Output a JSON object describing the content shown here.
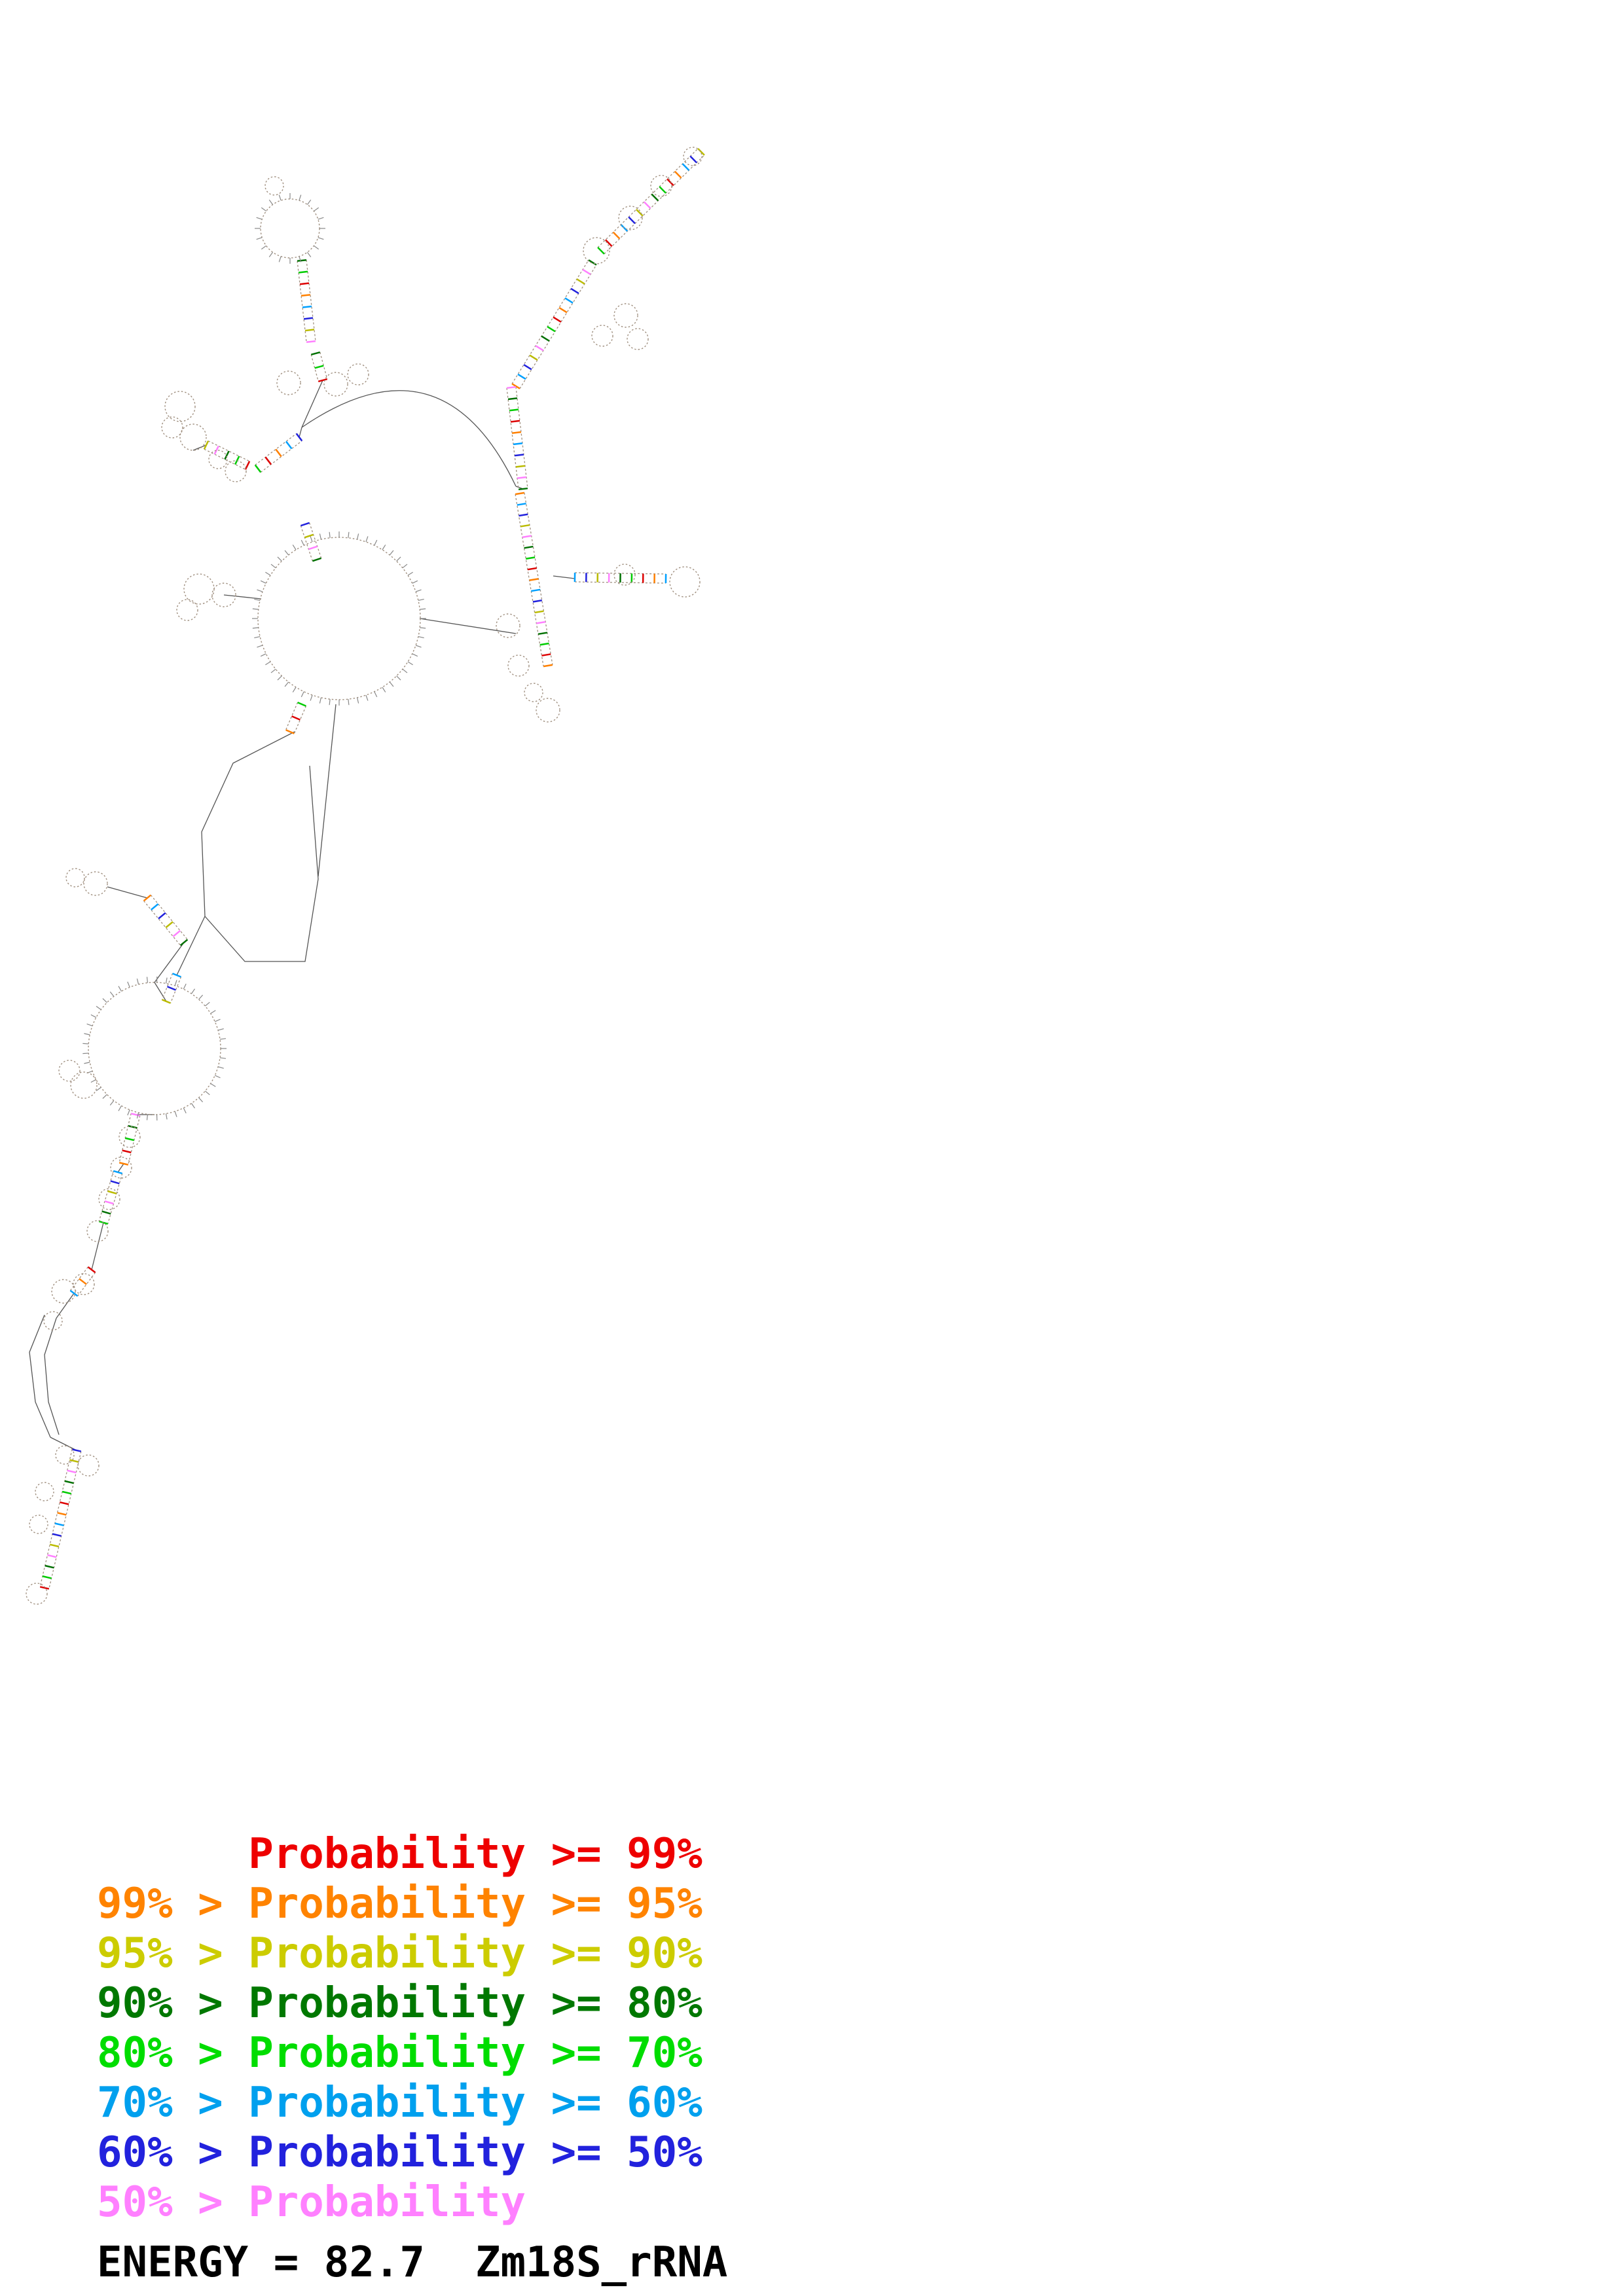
{
  "figure": {
    "energy_label": "ENERGY = 82.7  Zm18S_rRNA",
    "energy_value": "82.7",
    "molecule": "Zm18S_rRNA"
  },
  "legend": {
    "items": [
      {
        "text": "      Probability >= 99%",
        "color": "#ee0000"
      },
      {
        "text": "99% > Probability >= 95%",
        "color": "#ff8300"
      },
      {
        "text": "95% > Probability >= 90%",
        "color": "#cccc00"
      },
      {
        "text": "90% > Probability >= 80%",
        "color": "#007800"
      },
      {
        "text": "80% > Probability >= 70%",
        "color": "#00dd00"
      },
      {
        "text": "70% > Probability >= 60%",
        "color": "#00a0ee"
      },
      {
        "text": "60% > Probability >= 50%",
        "color": "#2222dd"
      },
      {
        "text": "50% > Probability",
        "color": "#ff80ff"
      }
    ]
  },
  "structure": {
    "backbone_color": "#555555",
    "rail_color": "#a09080",
    "loop_color": "#a09080",
    "tick_color": "#888888",
    "pair_palette": [
      "#007000",
      "#00cc00",
      "#dd0000",
      "#ff8000",
      "#00a0ff",
      "#2222dd",
      "#bbbb00",
      "#ff80ff"
    ],
    "loops": [
      [
        443,
        349,
        45
      ],
      [
        419,
        284,
        14
      ],
      [
        911,
        383,
        20
      ],
      [
        963,
        333,
        18
      ],
      [
        1010,
        284,
        16
      ],
      [
        1058,
        239,
        14
      ],
      [
        956,
        482,
        18
      ],
      [
        920,
        513,
        16
      ],
      [
        974,
        518,
        16
      ],
      [
        441,
        585,
        18
      ],
      [
        513,
        587,
        18
      ],
      [
        547,
        572,
        16
      ],
      [
        275,
        621,
        23
      ],
      [
        295,
        668,
        20
      ],
      [
        263,
        653,
        16
      ],
      [
        360,
        720,
        16
      ],
      [
        333,
        702,
        14
      ],
      [
        776,
        956,
        18
      ],
      [
        792,
        1017,
        16
      ],
      [
        837,
        1085,
        18
      ],
      [
        815,
        1058,
        14
      ],
      [
        1046,
        889,
        23
      ],
      [
        954,
        878,
        16
      ],
      [
        518,
        945,
        124
      ],
      [
        304,
        900,
        23
      ],
      [
        342,
        909,
        18
      ],
      [
        286,
        932,
        16
      ],
      [
        146,
        1350,
        18
      ],
      [
        115,
        1341,
        14
      ],
      [
        236,
        1602,
        101
      ],
      [
        128,
        1658,
        20
      ],
      [
        106,
        1636,
        16
      ],
      [
        198,
        1737,
        16
      ],
      [
        185,
        1784,
        16
      ],
      [
        167,
        1832,
        16
      ],
      [
        149,
        1881,
        16
      ],
      [
        97,
        1973,
        18
      ],
      [
        128,
        1962,
        16
      ],
      [
        81,
        2018,
        14
      ],
      [
        135,
        2239,
        16
      ],
      [
        99,
        2223,
        14
      ],
      [
        68,
        2279,
        14
      ],
      [
        59,
        2329,
        14
      ],
      [
        56,
        2435,
        16
      ]
    ],
    "helices": [
      [
        461,
        398,
        475,
        522
      ],
      [
        482,
        540,
        493,
        581
      ],
      [
        788,
        590,
        905,
        401
      ],
      [
        918,
        383,
        1071,
        232
      ],
      [
        781,
        592,
        799,
        747
      ],
      [
        394,
        716,
        457,
        668
      ],
      [
        315,
        680,
        378,
        711
      ],
      [
        794,
        754,
        837,
        1017
      ],
      [
        878,
        882,
        1017,
        884
      ],
      [
        466,
        801,
        484,
        855
      ],
      [
        461,
        1076,
        443,
        1118
      ],
      [
        270,
        1490,
        254,
        1530
      ],
      [
        207,
        1703,
        189,
        1778
      ],
      [
        180,
        1791,
        158,
        1868
      ],
      [
        140,
        1940,
        113,
        1976
      ],
      [
        117,
        2216,
        68,
        2426
      ],
      [
        225,
        1372,
        281,
        1440
      ]
    ],
    "arcs": [
      [
        461,
        653,
        675,
        506,
        788,
        743
      ]
    ],
    "polylines": [
      [
        [
          450,
          1118
        ],
        [
          356,
          1166
        ],
        [
          308,
          1271
        ],
        [
          313,
          1400
        ],
        [
          374,
          1469
        ],
        [
          466,
          1469
        ],
        [
          486,
          1343
        ],
        [
          473,
          1170
        ]
      ],
      [
        [
          486,
          1339
        ],
        [
          513,
          1076
        ]
      ],
      [
        [
          641,
          945
        ],
        [
          788,
          968
        ]
      ],
      [
        [
          313,
          1400
        ],
        [
          270,
          1490
        ]
      ],
      [
        [
          493,
          581
        ],
        [
          461,
          653
        ]
      ],
      [
        [
          457,
          668
        ],
        [
          461,
          653
        ]
      ],
      [
        [
          799,
          747
        ],
        [
          788,
          743
        ]
      ],
      [
        [
          878,
          884
        ],
        [
          845,
          880
        ]
      ],
      [
        [
          399,
          915
        ],
        [
          342,
          909
        ]
      ],
      [
        [
          68,
          2009
        ],
        [
          45,
          2066
        ],
        [
          54,
          2142
        ],
        [
          77,
          2196
        ]
      ],
      [
        [
          86,
          2014
        ],
        [
          68,
          2070
        ],
        [
          74,
          2142
        ],
        [
          90,
          2192
        ]
      ],
      [
        [
          113,
          1976
        ],
        [
          86,
          2014
        ]
      ],
      [
        [
          77,
          2196
        ],
        [
          117,
          2216
        ]
      ],
      [
        [
          254,
          1530
        ],
        [
          236,
          1501
        ]
      ],
      [
        [
          189,
          1778
        ],
        [
          180,
          1791
        ]
      ],
      [
        [
          158,
          1868
        ],
        [
          140,
          1940
        ]
      ],
      [
        [
          236,
          1703
        ],
        [
          207,
          1703
        ]
      ],
      [
        [
          295,
          688
        ],
        [
          315,
          680
        ]
      ],
      [
        [
          164,
          1355
        ],
        [
          225,
          1372
        ]
      ],
      [
        [
          281,
          1440
        ],
        [
          236,
          1501
        ]
      ]
    ]
  }
}
